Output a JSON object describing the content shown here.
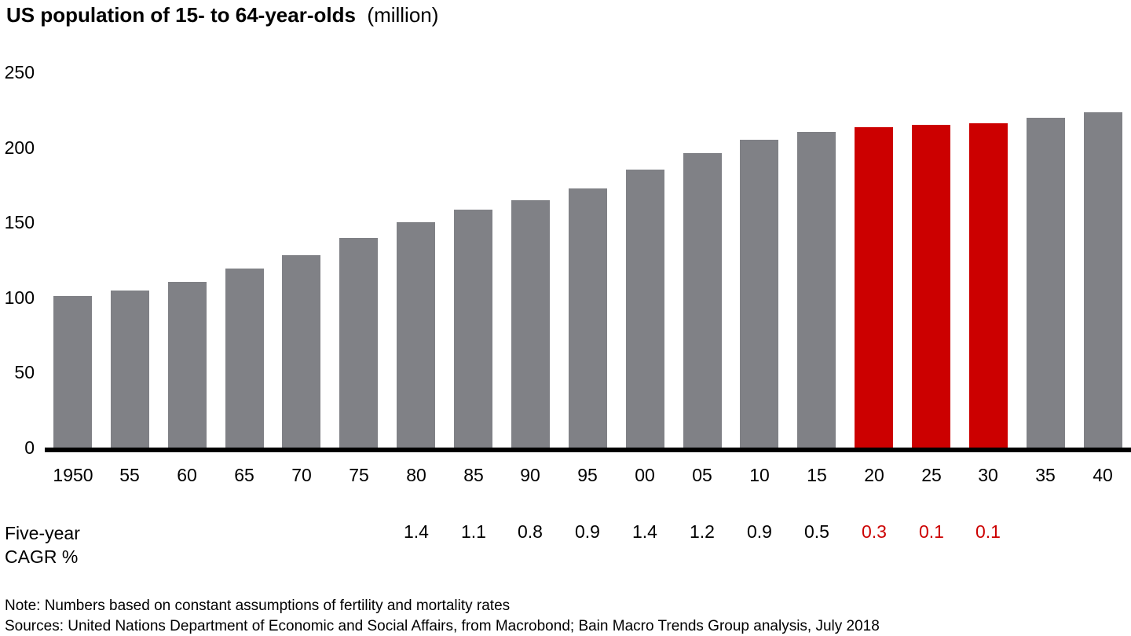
{
  "title": {
    "main": "US population of 15- to 64-year-olds",
    "unit": "(million)"
  },
  "chart_data": {
    "type": "bar",
    "title": "US population of 15- to 64-year-olds (million)",
    "categories": [
      "1950",
      "55",
      "60",
      "65",
      "70",
      "75",
      "80",
      "85",
      "90",
      "95",
      "00",
      "05",
      "10",
      "15",
      "20",
      "25",
      "30",
      "35",
      "40"
    ],
    "values": [
      101,
      104.5,
      110.5,
      119.5,
      128,
      139.5,
      150,
      158.5,
      164.5,
      172.5,
      185,
      196,
      205,
      210.5,
      213.5,
      215,
      216,
      219.5,
      223.5
    ],
    "highlight_indices": [
      14,
      15,
      16
    ],
    "xlabel": "",
    "ylabel": "",
    "ylim": [
      0,
      250
    ],
    "yticks": [
      0,
      50,
      100,
      150,
      200,
      250
    ],
    "grid": "off",
    "legend": "none",
    "cagr_row": {
      "label_line1": "Five-year",
      "label_line2": "CAGR %",
      "values": [
        null,
        null,
        null,
        null,
        null,
        null,
        "1.4",
        "1.1",
        "0.8",
        "0.9",
        "1.4",
        "1.2",
        "0.9",
        "0.5",
        "0.3",
        "0.1",
        "0.1",
        null,
        null
      ],
      "red_indices": [
        14,
        15,
        16
      ]
    }
  },
  "colors": {
    "bar_gray": "#808186",
    "bar_red": "#cc0000",
    "red_text": "#cc0000",
    "axis": "#000000",
    "text": "#000000"
  },
  "footer": {
    "note": "Note: Numbers based on constant assumptions of fertility and mortality rates",
    "sources": "Sources: United Nations Department of Economic and Social Affairs, from Macrobond; Bain Macro Trends Group analysis, July 2018"
  }
}
